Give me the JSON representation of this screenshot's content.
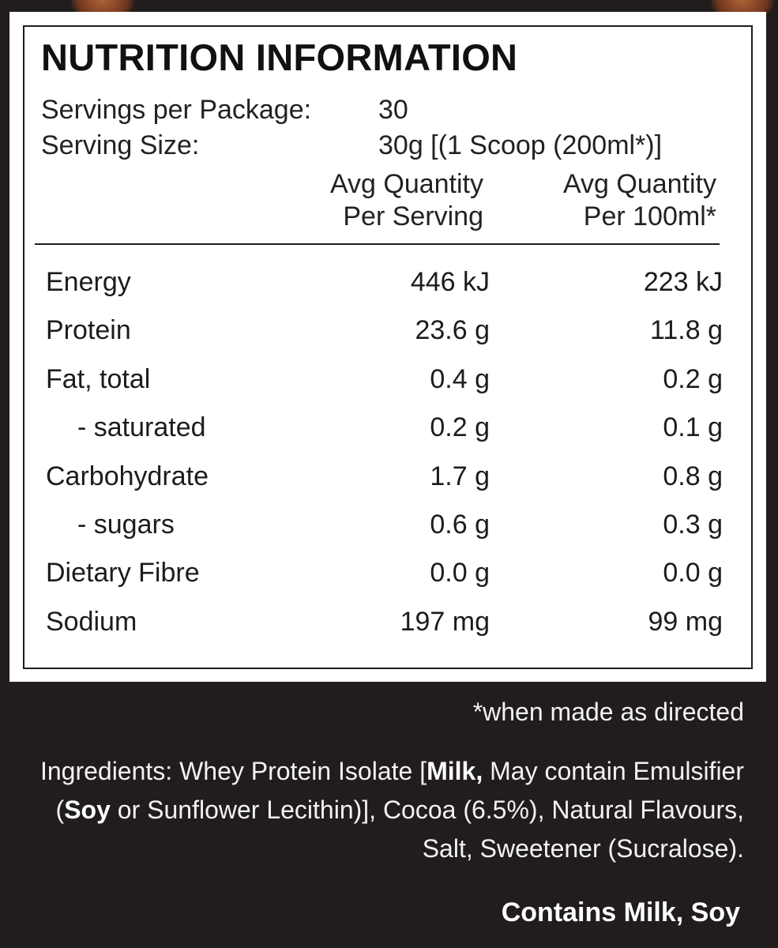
{
  "title": "NUTRITION INFORMATION",
  "servings_per_package": {
    "label": "Servings per Package:",
    "value": "30"
  },
  "serving_size": {
    "label": "Serving Size:",
    "value": "30g [(1 Scoop (200ml*)]"
  },
  "columns": {
    "per_serving": {
      "line1": "Avg Quantity",
      "line2": "Per Serving"
    },
    "per_100ml": {
      "line1": "Avg Quantity",
      "line2": "Per 100ml*"
    }
  },
  "rows": [
    {
      "label": "Energy",
      "per_serving": "446 kJ",
      "per_100ml": "223 kJ"
    },
    {
      "label": "Protein",
      "per_serving": "23.6 g",
      "per_100ml": "11.8 g"
    },
    {
      "label": "Fat, total",
      "per_serving": "0.4 g",
      "per_100ml": "0.2 g"
    },
    {
      "label": "- saturated",
      "per_serving": "0.2 g",
      "per_100ml": "0.1 g"
    },
    {
      "label": "Carbohydrate",
      "per_serving": "1.7 g",
      "per_100ml": "0.8 g"
    },
    {
      "label": "- sugars",
      "per_serving": "0.6 g",
      "per_100ml": "0.3 g"
    },
    {
      "label": "Dietary Fibre",
      "per_serving": "0.0 g",
      "per_100ml": "0.0 g"
    },
    {
      "label": "Sodium",
      "per_serving": "197 mg",
      "per_100ml": "99 mg"
    }
  ],
  "footnote": "*when made as directed",
  "ingredients": {
    "prefix": "Ingredients: Whey Protein Isolate [",
    "allergen_milk": "Milk,",
    "mid1": " May contain Emulsifier (",
    "allergen_soy": "Soy",
    "suffix": " or Sunflower Lecithin)], Cocoa (6.5%), Natural Flavours, Salt, Sweetener (Sucralose)."
  },
  "contains": "Contains Milk, Soy",
  "colors": {
    "background": "#211d1c",
    "panel": "#ffffff",
    "text_dark": "#1c1c1c",
    "text_light": "#f2f2f2"
  }
}
